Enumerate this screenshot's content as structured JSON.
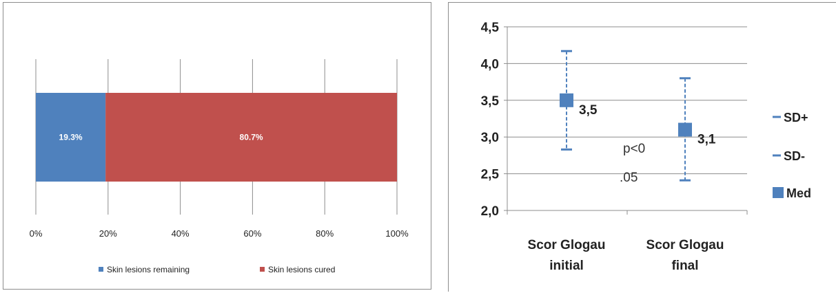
{
  "chart_data": [
    {
      "type": "bar",
      "orientation": "horizontal",
      "stacked": true,
      "title": "",
      "xlabel": "",
      "ylabel": "",
      "xlim": [
        0,
        100
      ],
      "x_ticks": [
        "0%",
        "20%",
        "40%",
        "60%",
        "80%",
        "100%"
      ],
      "grid": true,
      "legend_position": "bottom",
      "categories": [
        ""
      ],
      "series": [
        {
          "name": "Skin lesions remaining",
          "values": [
            19.3
          ],
          "label": "19.3%",
          "color": "#4f81bd"
        },
        {
          "name": "Skin lesions cured",
          "values": [
            80.7
          ],
          "label": "80.7%",
          "color": "#c0504d"
        }
      ]
    },
    {
      "type": "scatter",
      "variant": "error-bar",
      "title": "",
      "xlabel": "",
      "ylabel": "",
      "ylim": [
        2.0,
        4.5
      ],
      "y_ticks": [
        "2,0",
        "2,5",
        "3,0",
        "3,5",
        "4,0",
        "4,5"
      ],
      "grid": true,
      "legend_position": "right",
      "categories": [
        {
          "line1": "Scor Glogau",
          "line2": "initial"
        },
        {
          "line1": "Scor Glogau",
          "line2": "final"
        }
      ],
      "series": [
        {
          "name": "SD+",
          "values": [
            4.17,
            3.8
          ]
        },
        {
          "name": "SD-",
          "values": [
            2.83,
            2.41
          ]
        },
        {
          "name": "Med",
          "values": [
            3.5,
            3.1
          ],
          "labels": [
            "3,5",
            "3,1"
          ]
        }
      ],
      "color": "#4f81bd",
      "annotation": {
        "line1": "p<0",
        "line2": ".05"
      }
    }
  ]
}
